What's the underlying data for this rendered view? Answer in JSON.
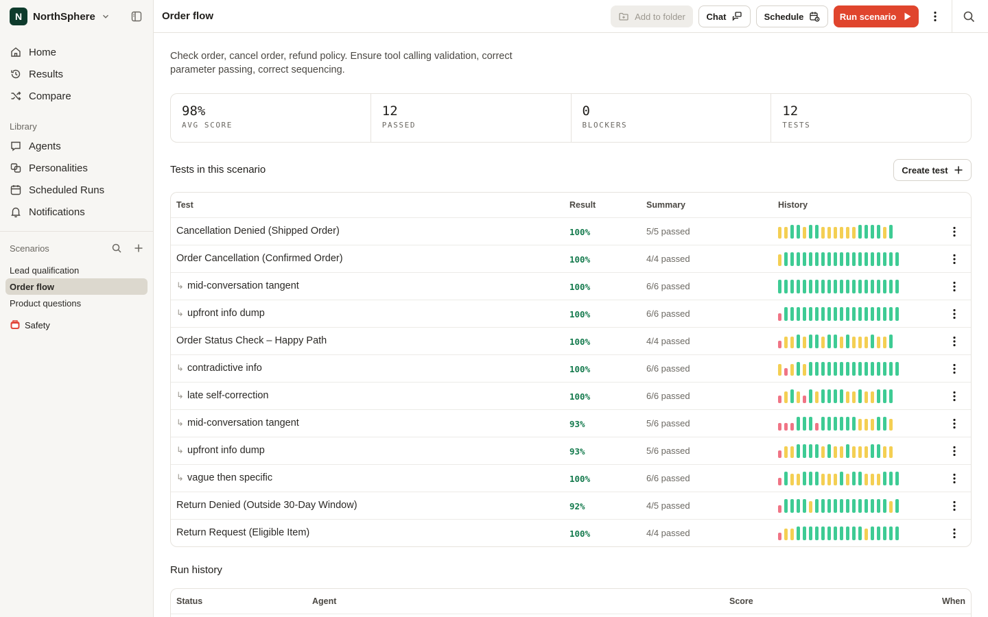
{
  "workspace": {
    "initial": "N",
    "name": "NorthSphere"
  },
  "nav": [
    {
      "label": "Home",
      "icon": "home-icon"
    },
    {
      "label": "Results",
      "icon": "history-icon"
    },
    {
      "label": "Compare",
      "icon": "shuffle-icon"
    }
  ],
  "library": {
    "label": "Library",
    "items": [
      {
        "label": "Agents",
        "icon": "agent-icon"
      },
      {
        "label": "Personalities",
        "icon": "personalities-icon"
      },
      {
        "label": "Scheduled Runs",
        "icon": "calendar-icon"
      },
      {
        "label": "Notifications",
        "icon": "bell-icon"
      }
    ]
  },
  "scenarios": {
    "label": "Scenarios",
    "items": [
      {
        "label": "Lead qualification",
        "active": false
      },
      {
        "label": "Order flow",
        "active": true
      },
      {
        "label": "Product questions",
        "active": false
      }
    ],
    "folder": {
      "label": "Safety",
      "icon": "safety-icon"
    }
  },
  "header": {
    "title": "Order flow",
    "add_to_folder": "Add to folder",
    "chat": "Chat",
    "schedule": "Schedule",
    "run": "Run scenario"
  },
  "description": "Check order, cancel order, refund policy. Ensure tool calling validation, correct parameter passing, correct sequencing.",
  "stats": [
    {
      "value": "98%",
      "label": "AVG SCORE"
    },
    {
      "value": "12",
      "label": "PASSED"
    },
    {
      "value": "0",
      "label": "BLOCKERS"
    },
    {
      "value": "12",
      "label": "TESTS"
    }
  ],
  "tests_section": {
    "title": "Tests in this scenario",
    "create_button": "Create test",
    "columns": {
      "test": "Test",
      "result": "Result",
      "summary": "Summary",
      "history": "History"
    },
    "rows": [
      {
        "name": "Cancellation Denied (Shipped Order)",
        "sub": false,
        "result": "100%",
        "summary": "5/5 passed",
        "history": "yyggyggyyyyyyggggyg"
      },
      {
        "name": "Order Cancellation (Confirmed Order)",
        "sub": false,
        "result": "100%",
        "summary": "4/4 passed",
        "history": "yggggggggggggggggggg"
      },
      {
        "name": "mid-conversation tangent",
        "sub": true,
        "result": "100%",
        "summary": "6/6 passed",
        "history": "gggggggggggggggggggg"
      },
      {
        "name": "upfront info dump",
        "sub": true,
        "result": "100%",
        "summary": "6/6 passed",
        "history": "rggggggggggggggggggg"
      },
      {
        "name": "Order Status Check – Happy Path",
        "sub": false,
        "result": "100%",
        "summary": "4/4 passed",
        "history": "ryygyggyggygyyygyyg"
      },
      {
        "name": "contradictive info",
        "sub": true,
        "result": "100%",
        "summary": "6/6 passed",
        "history": "yrygyggggggggggggggg"
      },
      {
        "name": "late self-correction",
        "sub": true,
        "result": "100%",
        "summary": "6/6 passed",
        "history": "rygyrgyggggyygyyggg"
      },
      {
        "name": "mid-conversation tangent",
        "sub": true,
        "result": "93%",
        "summary": "5/6 passed",
        "history": "rrrgggrggggggyyyggy"
      },
      {
        "name": "upfront info dump",
        "sub": true,
        "result": "93%",
        "summary": "5/6 passed",
        "history": "ryyggggygyygyyyggyy"
      },
      {
        "name": "vague then specific",
        "sub": true,
        "result": "100%",
        "summary": "6/6 passed",
        "history": "rgyygggyyygyggyyyggg"
      },
      {
        "name": "Return Denied (Outside 30-Day Window)",
        "sub": false,
        "result": "92%",
        "summary": "4/5 passed",
        "history": "rggggyggggggggggggyg"
      },
      {
        "name": "Return Request (Eligible Item)",
        "sub": false,
        "result": "100%",
        "summary": "4/4 passed",
        "history": "ryygggggggggggygggggg"
      }
    ]
  },
  "run_history": {
    "title": "Run history",
    "columns": {
      "status": "Status",
      "agent": "Agent",
      "score": "Score",
      "when": "When"
    }
  },
  "colors": {
    "green": "#3ecb94",
    "yellow": "#f4cf53",
    "red": "#f07485",
    "accent": "#e0452d",
    "pass_text": "#147a4d"
  }
}
